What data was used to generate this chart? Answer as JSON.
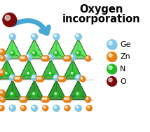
{
  "title_line1": "Oxygen",
  "title_line2": "incorporation",
  "title_fontsize": 10.5,
  "bg_color": "#ffffff",
  "legend_items": [
    {
      "label": "Ge",
      "color": "#7ec8e8"
    },
    {
      "label": "Zn",
      "color": "#e88010"
    },
    {
      "label": "N",
      "color": "#22bb22"
    },
    {
      "label": "O",
      "color": "#7a0c0c"
    }
  ],
  "arrow_color": "#45a8d5",
  "oxygen_ball_color": "#7a0c0c",
  "tetra_face_color_top": "#50cc50",
  "tetra_face_color_mid": "#30a830",
  "tetra_face_color_bot": "#228822",
  "tetra_edge_color": "#003300",
  "ge_color": "#7ec8e8",
  "zn_color": "#e88010",
  "n_color": "#22bb22",
  "figsize": [
    2.14,
    1.89
  ],
  "dpi": 100
}
